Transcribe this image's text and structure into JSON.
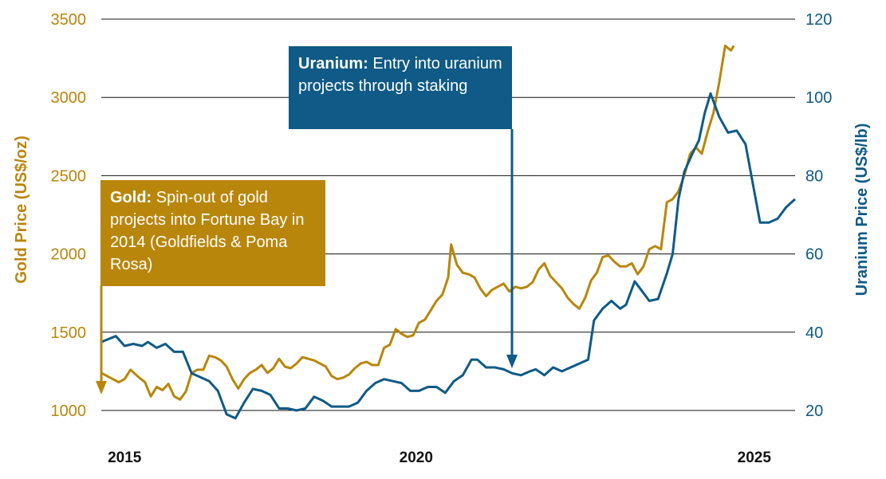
{
  "chart_data": {
    "type": "line",
    "x_ticks": [
      "2015",
      "2020",
      "2025"
    ],
    "left_axis": {
      "label": "Gold Price (US$/oz)",
      "ticks": [
        1000,
        1500,
        2000,
        2500,
        3000,
        3500
      ],
      "range": [
        1000,
        3500
      ]
    },
    "right_axis": {
      "label": "Uranium Price (US$/lb)",
      "ticks": [
        20,
        40,
        60,
        80,
        100,
        120
      ],
      "range": [
        20,
        120
      ]
    },
    "grid": true,
    "series": [
      {
        "axis": "left",
        "color": "#b8860b",
        "points": [
          [
            2014.6,
            1240
          ],
          [
            2014.9,
            1180
          ],
          [
            2015.0,
            1200
          ],
          [
            2015.1,
            1260
          ],
          [
            2015.25,
            1210
          ],
          [
            2015.35,
            1180
          ],
          [
            2015.45,
            1090
          ],
          [
            2015.55,
            1150
          ],
          [
            2015.65,
            1130
          ],
          [
            2015.75,
            1170
          ],
          [
            2015.85,
            1090
          ],
          [
            2015.95,
            1070
          ],
          [
            2016.05,
            1120
          ],
          [
            2016.15,
            1240
          ],
          [
            2016.25,
            1260
          ],
          [
            2016.35,
            1260
          ],
          [
            2016.45,
            1350
          ],
          [
            2016.55,
            1340
          ],
          [
            2016.65,
            1320
          ],
          [
            2016.75,
            1280
          ],
          [
            2016.85,
            1200
          ],
          [
            2016.95,
            1140
          ],
          [
            2017.05,
            1200
          ],
          [
            2017.15,
            1240
          ],
          [
            2017.25,
            1260
          ],
          [
            2017.35,
            1290
          ],
          [
            2017.45,
            1240
          ],
          [
            2017.55,
            1270
          ],
          [
            2017.65,
            1330
          ],
          [
            2017.75,
            1280
          ],
          [
            2017.85,
            1270
          ],
          [
            2017.95,
            1300
          ],
          [
            2018.05,
            1340
          ],
          [
            2018.15,
            1330
          ],
          [
            2018.25,
            1320
          ],
          [
            2018.35,
            1300
          ],
          [
            2018.45,
            1280
          ],
          [
            2018.55,
            1220
          ],
          [
            2018.65,
            1200
          ],
          [
            2018.75,
            1210
          ],
          [
            2018.85,
            1230
          ],
          [
            2018.95,
            1270
          ],
          [
            2019.05,
            1300
          ],
          [
            2019.15,
            1310
          ],
          [
            2019.25,
            1290
          ],
          [
            2019.35,
            1290
          ],
          [
            2019.45,
            1400
          ],
          [
            2019.55,
            1420
          ],
          [
            2019.65,
            1520
          ],
          [
            2019.75,
            1490
          ],
          [
            2019.85,
            1470
          ],
          [
            2019.95,
            1480
          ],
          [
            2020.05,
            1560
          ],
          [
            2020.15,
            1580
          ],
          [
            2020.25,
            1640
          ],
          [
            2020.35,
            1700
          ],
          [
            2020.45,
            1740
          ],
          [
            2020.55,
            1850
          ],
          [
            2020.6,
            2060
          ],
          [
            2020.7,
            1930
          ],
          [
            2020.8,
            1880
          ],
          [
            2020.9,
            1870
          ],
          [
            2021.0,
            1850
          ],
          [
            2021.1,
            1780
          ],
          [
            2021.2,
            1730
          ],
          [
            2021.3,
            1770
          ],
          [
            2021.4,
            1790
          ],
          [
            2021.5,
            1810
          ],
          [
            2021.6,
            1760
          ],
          [
            2021.7,
            1790
          ],
          [
            2021.8,
            1780
          ],
          [
            2021.9,
            1790
          ],
          [
            2022.0,
            1820
          ],
          [
            2022.1,
            1900
          ],
          [
            2022.2,
            1940
          ],
          [
            2022.3,
            1860
          ],
          [
            2022.4,
            1820
          ],
          [
            2022.5,
            1780
          ],
          [
            2022.6,
            1720
          ],
          [
            2022.7,
            1680
          ],
          [
            2022.8,
            1650
          ],
          [
            2022.9,
            1720
          ],
          [
            2023.0,
            1830
          ],
          [
            2023.1,
            1880
          ],
          [
            2023.2,
            1980
          ],
          [
            2023.3,
            1990
          ],
          [
            2023.4,
            1950
          ],
          [
            2023.5,
            1920
          ],
          [
            2023.6,
            1920
          ],
          [
            2023.7,
            1940
          ],
          [
            2023.8,
            1870
          ],
          [
            2023.9,
            1920
          ],
          [
            2024.0,
            2030
          ],
          [
            2024.1,
            2050
          ],
          [
            2024.2,
            2030
          ],
          [
            2024.3,
            2330
          ],
          [
            2024.4,
            2350
          ],
          [
            2024.5,
            2400
          ],
          [
            2024.6,
            2500
          ],
          [
            2024.7,
            2640
          ],
          [
            2024.8,
            2680
          ],
          [
            2024.9,
            2640
          ],
          [
            2025.0,
            2780
          ],
          [
            2025.1,
            2900
          ],
          [
            2025.2,
            3100
          ],
          [
            2025.3,
            3330
          ],
          [
            2025.4,
            3300
          ],
          [
            2025.45,
            3330
          ]
        ]
      },
      {
        "axis": "right",
        "color": "#0f5a86",
        "points": [
          [
            2014.6,
            37.5
          ],
          [
            2014.85,
            39
          ],
          [
            2015.0,
            36.5
          ],
          [
            2015.15,
            37
          ],
          [
            2015.3,
            36.5
          ],
          [
            2015.4,
            37.5
          ],
          [
            2015.55,
            36
          ],
          [
            2015.7,
            37
          ],
          [
            2015.85,
            35
          ],
          [
            2016.0,
            35
          ],
          [
            2016.15,
            29.5
          ],
          [
            2016.3,
            28.5
          ],
          [
            2016.45,
            27.5
          ],
          [
            2016.6,
            25
          ],
          [
            2016.75,
            19
          ],
          [
            2016.9,
            18
          ],
          [
            2017.05,
            22
          ],
          [
            2017.2,
            25.5
          ],
          [
            2017.35,
            25
          ],
          [
            2017.5,
            24
          ],
          [
            2017.65,
            20.5
          ],
          [
            2017.8,
            20.5
          ],
          [
            2017.95,
            20
          ],
          [
            2018.1,
            20.5
          ],
          [
            2018.25,
            23.5
          ],
          [
            2018.4,
            22.5
          ],
          [
            2018.55,
            21
          ],
          [
            2018.7,
            21
          ],
          [
            2018.85,
            21
          ],
          [
            2019.0,
            22
          ],
          [
            2019.15,
            25
          ],
          [
            2019.3,
            27
          ],
          [
            2019.45,
            28
          ],
          [
            2019.6,
            27.5
          ],
          [
            2019.75,
            27
          ],
          [
            2019.9,
            25
          ],
          [
            2020.05,
            25
          ],
          [
            2020.2,
            26
          ],
          [
            2020.35,
            26
          ],
          [
            2020.5,
            24.5
          ],
          [
            2020.65,
            27.5
          ],
          [
            2020.8,
            29
          ],
          [
            2020.95,
            33
          ],
          [
            2021.05,
            33
          ],
          [
            2021.2,
            31
          ],
          [
            2021.35,
            31
          ],
          [
            2021.5,
            30.5
          ],
          [
            2021.65,
            29.5
          ],
          [
            2021.8,
            29
          ],
          [
            2021.95,
            30
          ],
          [
            2022.05,
            30.5
          ],
          [
            2022.2,
            29
          ],
          [
            2022.35,
            31
          ],
          [
            2022.5,
            30
          ],
          [
            2022.65,
            31
          ],
          [
            2022.8,
            32
          ],
          [
            2022.95,
            33
          ],
          [
            2023.05,
            43
          ],
          [
            2023.2,
            46
          ],
          [
            2023.35,
            48
          ],
          [
            2023.5,
            46
          ],
          [
            2023.6,
            47
          ],
          [
            2023.75,
            53
          ],
          [
            2023.9,
            50
          ],
          [
            2024.0,
            48
          ],
          [
            2024.15,
            48.5
          ],
          [
            2024.3,
            55
          ],
          [
            2024.4,
            60
          ],
          [
            2024.5,
            74
          ],
          [
            2024.6,
            81
          ],
          [
            2024.75,
            86
          ],
          [
            2024.85,
            89
          ],
          [
            2024.95,
            96
          ],
          [
            2025.05,
            101
          ],
          [
            2025.2,
            95
          ],
          [
            2025.35,
            91
          ],
          [
            2025.5,
            91.5
          ],
          [
            2025.65,
            88
          ],
          [
            2025.8,
            76
          ],
          [
            2025.9,
            68
          ],
          [
            2026.05,
            68
          ],
          [
            2026.2,
            69
          ],
          [
            2026.35,
            72
          ],
          [
            2026.5,
            74
          ]
        ]
      }
    ]
  },
  "callouts": {
    "gold": {
      "label": "Gold:",
      "text": "Spin-out of gold projects into Fortune Bay in 2014 (Goldfields & Poma Rosa)"
    },
    "uranium": {
      "label": "Uranium:",
      "text": "Entry into uranium projects through staking"
    }
  }
}
